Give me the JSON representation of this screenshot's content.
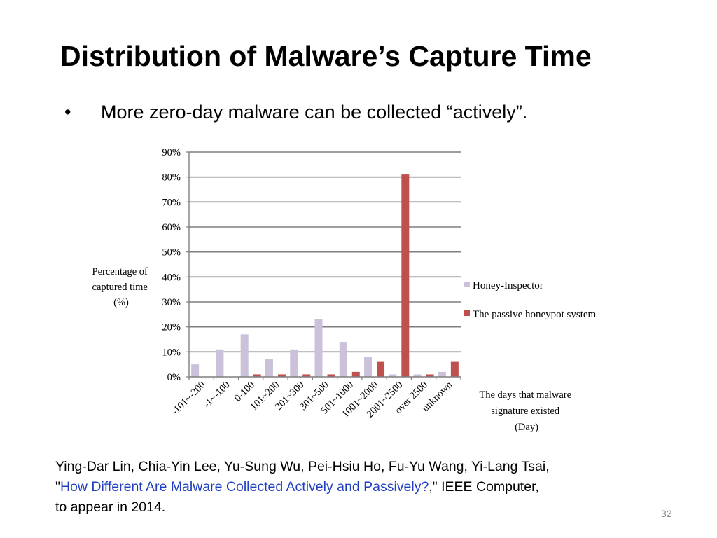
{
  "slide": {
    "title": "Distribution of Malware’s Capture Time",
    "bullet_symbol": "•",
    "bullet_text": "More zero-day malware can be collected “actively”.",
    "citation": {
      "authors_line": "Ying-Dar Lin, Chia-Yin Lee, Yu-Sung Wu, Pei-Hsiu Ho, Fu-Yu Wang, Yi-Lang Tsai,",
      "quote_open": "\"",
      "link_text": "How Different Are Malware Collected Actively and Passively?",
      "after_link": ",\" IEEE Computer,",
      "last_line": "to appear in 2014."
    },
    "page_number": "32"
  },
  "colors": {
    "honey_inspector": "#ccc1da",
    "passive": "#c0504d",
    "grid": "#7f7f7f"
  },
  "chart_data": {
    "type": "bar",
    "categories": [
      "-101~-200",
      "-1~-100",
      "0-100",
      "101~200",
      "201~300",
      "301~500",
      "501~1000",
      "1001~2000",
      "2001~2500",
      "over 2500",
      "unknown"
    ],
    "series": [
      {
        "name": "Honey-Inspector",
        "values": [
          5,
          11,
          17,
          7,
          11,
          23,
          14,
          8,
          1,
          1,
          2
        ]
      },
      {
        "name": "The passive honeypot system",
        "values": [
          0,
          0,
          1,
          1,
          1,
          1,
          2,
          6,
          81,
          1,
          6
        ]
      }
    ],
    "ylim": [
      0,
      90
    ],
    "yticks": [
      "0%",
      "10%",
      "20%",
      "30%",
      "40%",
      "50%",
      "60%",
      "70%",
      "80%",
      "90%"
    ],
    "ylabel": [
      "Percentage of",
      "captured time",
      "(%)"
    ],
    "xlabel": [
      "The days that malware",
      "signature existed",
      "(Day)"
    ],
    "legend_position": "right",
    "grid": true
  }
}
